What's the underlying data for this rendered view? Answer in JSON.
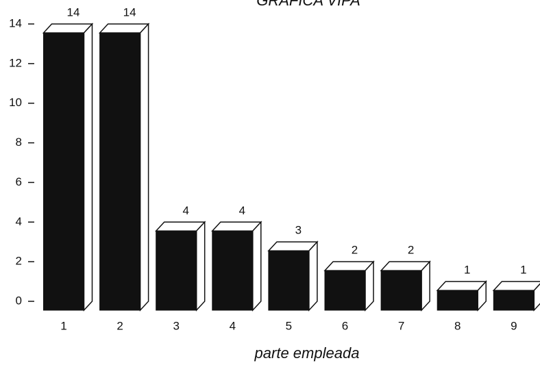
{
  "chart_data": {
    "type": "bar3d",
    "title": "GRAFICA VIPA",
    "x_label": "parte empleada",
    "categories": [
      "1",
      "2",
      "3",
      "4",
      "5",
      "6",
      "7",
      "8",
      "9"
    ],
    "values": [
      14,
      14,
      4,
      4,
      3,
      2,
      2,
      1,
      1
    ],
    "color": "#111111",
    "ylim": [
      0,
      14
    ],
    "yticks": [
      0,
      2,
      4,
      6,
      8,
      10,
      12,
      14
    ],
    "grid": false
  }
}
